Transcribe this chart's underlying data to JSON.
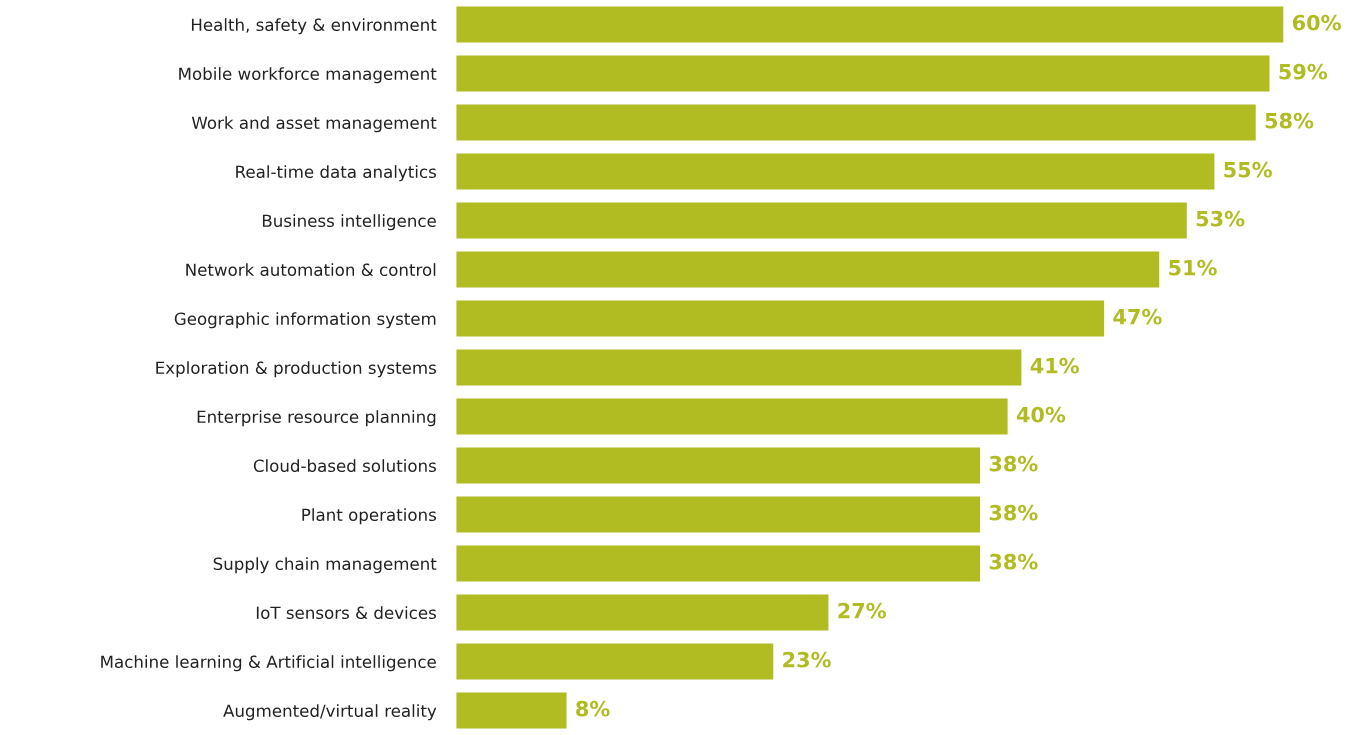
{
  "chart_data": {
    "type": "bar",
    "orientation": "horizontal",
    "categories": [
      "Health, safety & environment",
      "Mobile workforce management",
      "Work and asset management",
      "Real-time data analytics",
      "Business intelligence",
      "Network automation & control",
      "Geographic information system",
      "Exploration & production systems",
      "Enterprise resource planning",
      "Cloud-based solutions",
      "Plant operations",
      "Supply chain management",
      "IoT sensors & devices",
      "Machine learning & Artificial intelligence",
      "Augmented/virtual reality"
    ],
    "values": [
      60,
      59,
      58,
      55,
      53,
      51,
      47,
      41,
      40,
      38,
      38,
      38,
      27,
      23,
      8
    ],
    "value_labels": [
      "60%",
      "59%",
      "58%",
      "55%",
      "53%",
      "51%",
      "47%",
      "41%",
      "40%",
      "38%",
      "38%",
      "38%",
      "27%",
      "23%",
      "8%"
    ],
    "color": "#b0bc22",
    "grid": false,
    "legend": false
  }
}
